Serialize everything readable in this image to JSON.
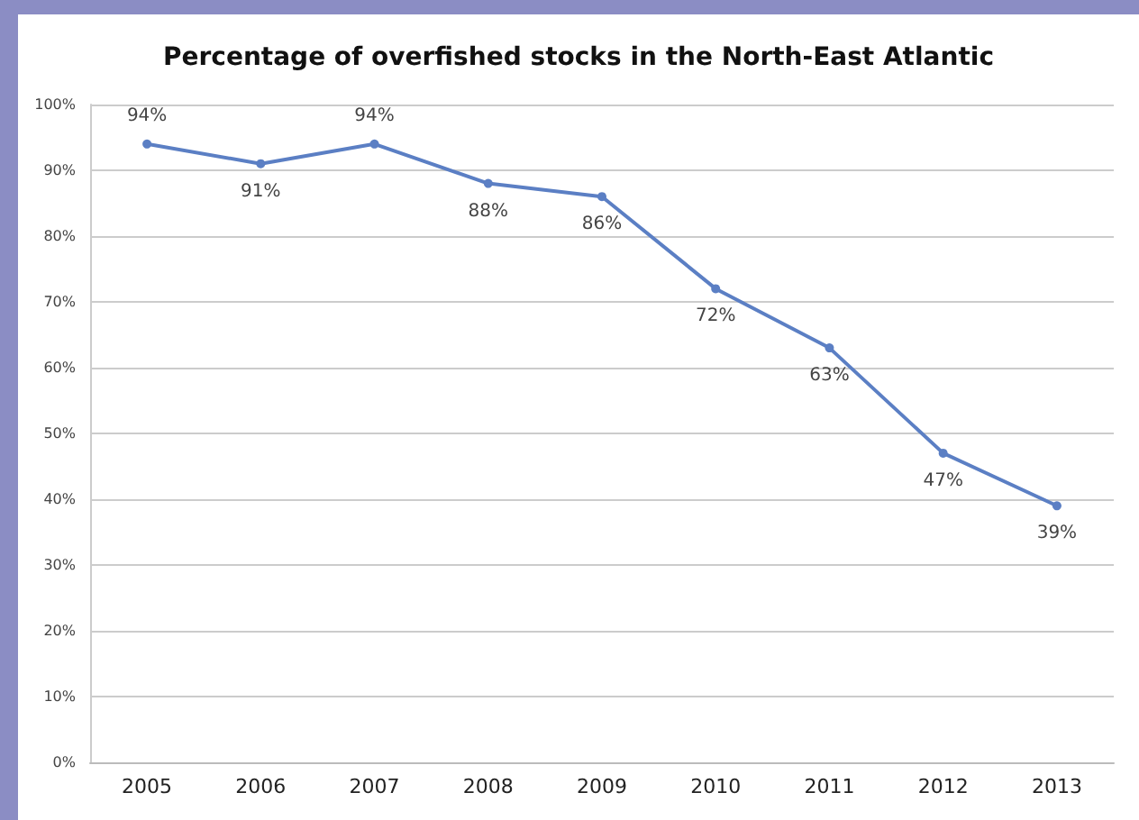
{
  "chart_data": {
    "type": "line",
    "title": "Percentage of overfished stocks in the North-East Atlantic",
    "categories": [
      "2005",
      "2006",
      "2007",
      "2008",
      "2009",
      "2010",
      "2011",
      "2012",
      "2013"
    ],
    "series": [
      {
        "color": "#5b7fc4",
        "values": [
          94,
          91,
          94,
          88,
          86,
          72,
          63,
          47,
          39
        ],
        "value_labels": [
          "94%",
          "91%",
          "94%",
          "88%",
          "86%",
          "72%",
          "63%",
          "47%",
          "39%"
        ]
      }
    ],
    "ylim": [
      0,
      100
    ],
    "yticks": [
      {
        "value": 0,
        "label": "0%"
      },
      {
        "value": 10,
        "label": "10%"
      },
      {
        "value": 20,
        "label": "20%"
      },
      {
        "value": 30,
        "label": "30%"
      },
      {
        "value": 40,
        "label": "40%"
      },
      {
        "value": 50,
        "label": "50%"
      },
      {
        "value": 60,
        "label": "60%"
      },
      {
        "value": 70,
        "label": "70%"
      },
      {
        "value": 80,
        "label": "80%"
      },
      {
        "value": 90,
        "label": "90%"
      },
      {
        "value": 100,
        "label": "100%"
      }
    ],
    "grid": "y",
    "marker": "circle",
    "line_style": "solid"
  }
}
